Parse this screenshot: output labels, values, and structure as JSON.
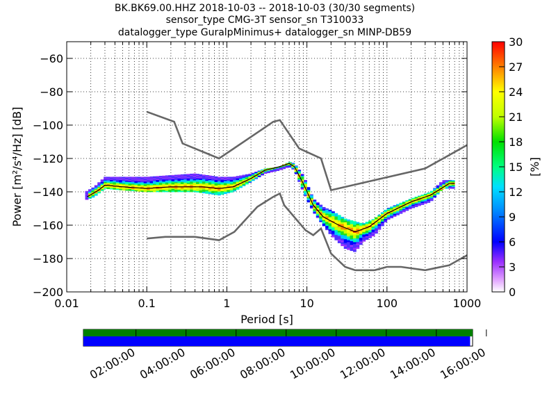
{
  "chart_data": {
    "type": "heatmap",
    "title_lines": [
      "BK.BK69.00.HHZ   2018-10-03 -- 2018-10-03  (30/30 segments)",
      "sensor_type CMG-3T sensor_sn T310033",
      "datalogger_type GuralpMinimus+ datalogger_sn MINP-DB59"
    ],
    "xlabel": "Period [s]",
    "ylabel": "Power [m²/s⁴/Hz] [dB]",
    "x_scale": "log",
    "xlim": [
      0.01,
      1000
    ],
    "ylim": [
      -200,
      -50
    ],
    "x_ticks": [
      {
        "value": 0.01,
        "label": "0.01"
      },
      {
        "value": 0.1,
        "label": "0.1"
      },
      {
        "value": 1,
        "label": "1"
      },
      {
        "value": 10,
        "label": "10"
      },
      {
        "value": 100,
        "label": "100"
      },
      {
        "value": 1000,
        "label": "1000"
      }
    ],
    "y_ticks": [
      {
        "value": -60,
        "label": "−60"
      },
      {
        "value": -80,
        "label": "−80"
      },
      {
        "value": -100,
        "label": "−100"
      },
      {
        "value": -120,
        "label": "−120"
      },
      {
        "value": -140,
        "label": "−140"
      },
      {
        "value": -160,
        "label": "−160"
      },
      {
        "value": -180,
        "label": "−180"
      },
      {
        "value": -200,
        "label": "−200"
      }
    ],
    "grid": true,
    "colorbar": {
      "label": "[%]",
      "range": [
        0,
        30
      ],
      "ticks": [
        "0",
        "3",
        "6",
        "9",
        "12",
        "15",
        "18",
        "21",
        "24",
        "27",
        "30"
      ]
    },
    "noise_models": [
      {
        "points": [
          [
            0.1,
            -92
          ],
          [
            0.22,
            -98
          ],
          [
            0.28,
            -111
          ],
          [
            0.8,
            -120
          ],
          [
            3.8,
            -98
          ],
          [
            4.6,
            -97
          ],
          [
            8,
            -114
          ],
          [
            15,
            -120
          ],
          [
            20,
            -139
          ],
          [
            300,
            -126
          ],
          [
            1000,
            -112
          ]
        ]
      },
      {
        "points": [
          [
            0.1,
            -168
          ],
          [
            0.17,
            -167
          ],
          [
            0.4,
            -167
          ],
          [
            0.8,
            -169
          ],
          [
            1.24,
            -164
          ],
          [
            2.4,
            -149
          ],
          [
            3.8,
            -143
          ],
          [
            4.6,
            -141
          ],
          [
            5.2,
            -148
          ],
          [
            9.6,
            -163
          ],
          [
            12,
            -166
          ],
          [
            15,
            -162
          ],
          [
            20,
            -177
          ],
          [
            30,
            -185
          ],
          [
            40,
            -187
          ],
          [
            70,
            -187
          ],
          [
            100,
            -185
          ],
          [
            150,
            -185
          ],
          [
            300,
            -187
          ],
          [
            600,
            -184
          ],
          [
            1000,
            -178
          ]
        ]
      }
    ],
    "median_curve": [
      [
        0.018,
        -143
      ],
      [
        0.025,
        -139
      ],
      [
        0.03,
        -136
      ],
      [
        0.05,
        -137
      ],
      [
        0.1,
        -138
      ],
      [
        0.2,
        -137
      ],
      [
        0.5,
        -137
      ],
      [
        0.8,
        -138
      ],
      [
        1.2,
        -137
      ],
      [
        2,
        -132
      ],
      [
        3,
        -127
      ],
      [
        4.5,
        -125
      ],
      [
        6,
        -123
      ],
      [
        7,
        -125
      ],
      [
        9,
        -135
      ],
      [
        12,
        -148
      ],
      [
        16,
        -155
      ],
      [
        25,
        -160
      ],
      [
        40,
        -164
      ],
      [
        60,
        -161
      ],
      [
        100,
        -153
      ],
      [
        200,
        -146
      ],
      [
        350,
        -142
      ],
      [
        600,
        -135
      ],
      [
        700,
        -135
      ]
    ],
    "density_band": {
      "upper": [
        [
          0.017,
          -140
        ],
        [
          0.022,
          -137
        ],
        [
          0.03,
          -131
        ],
        [
          0.05,
          -131
        ],
        [
          0.1,
          -131
        ],
        [
          0.2,
          -130
        ],
        [
          0.4,
          -129
        ],
        [
          0.8,
          -131
        ],
        [
          1.2,
          -131
        ],
        [
          2,
          -129
        ],
        [
          3,
          -126
        ],
        [
          4.5,
          -125
        ],
        [
          6,
          -122
        ],
        [
          7,
          -123
        ],
        [
          9,
          -130
        ],
        [
          12,
          -144
        ],
        [
          16,
          -149
        ],
        [
          20,
          -151
        ],
        [
          30,
          -156
        ],
        [
          50,
          -159
        ],
        [
          70,
          -156
        ],
        [
          100,
          -150
        ],
        [
          200,
          -144
        ],
        [
          350,
          -140
        ],
        [
          500,
          -133
        ],
        [
          700,
          -133
        ]
      ],
      "lower": [
        [
          0.017,
          -145
        ],
        [
          0.022,
          -143
        ],
        [
          0.03,
          -138
        ],
        [
          0.05,
          -139
        ],
        [
          0.1,
          -140
        ],
        [
          0.2,
          -140
        ],
        [
          0.4,
          -140
        ],
        [
          0.8,
          -142
        ],
        [
          1.2,
          -140
        ],
        [
          2,
          -134
        ],
        [
          3,
          -129
        ],
        [
          4.5,
          -127
        ],
        [
          6,
          -125
        ],
        [
          7,
          -127
        ],
        [
          9,
          -140
        ],
        [
          12,
          -152
        ],
        [
          16,
          -160
        ],
        [
          20,
          -166
        ],
        [
          30,
          -174
        ],
        [
          40,
          -176
        ],
        [
          50,
          -170
        ],
        [
          70,
          -166
        ],
        [
          100,
          -157
        ],
        [
          200,
          -150
        ],
        [
          350,
          -146
        ],
        [
          500,
          -138
        ],
        [
          700,
          -138
        ]
      ]
    },
    "timeline": {
      "tick_labels": [
        "02:00:00",
        "04:00:00",
        "06:00:00",
        "08:00:00",
        "10:00:00",
        "12:00:00",
        "14:00:00",
        "16:00:00"
      ],
      "tick_hours": [
        2,
        4,
        6,
        8,
        10,
        12,
        14,
        16
      ],
      "time_range_hours": [
        -0.1,
        15.45
      ],
      "data_coverage_hours": [
        -0.1,
        15.45
      ],
      "psd_coverage_hours": [
        -0.1,
        15.35
      ],
      "colors": {
        "data": "#008000",
        "psd": "#0000ff"
      }
    }
  }
}
